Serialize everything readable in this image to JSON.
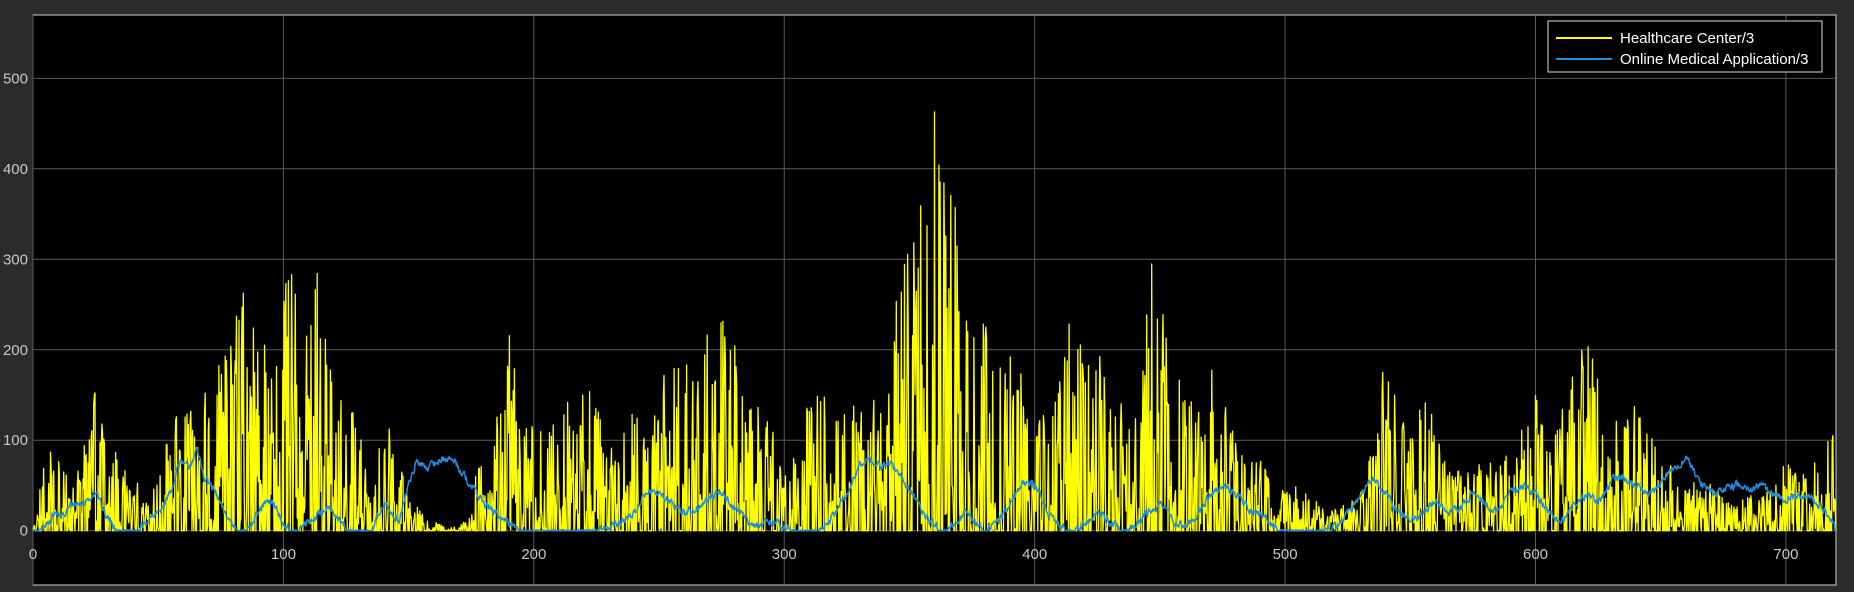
{
  "chart_data": {
    "type": "line",
    "xlim": [
      0,
      720
    ],
    "ylim": [
      -60,
      570
    ],
    "xticks": [
      0,
      100,
      200,
      300,
      400,
      500,
      600,
      700
    ],
    "yticks": [
      0,
      100,
      200,
      300,
      400,
      500
    ],
    "grid": true,
    "legend_position": "top-right",
    "background": "#000000",
    "frame_color": "#2b2b2b",
    "grid_color": "#5a5a5a",
    "series": [
      {
        "name": "Healthcare Center/3",
        "color": "#ffff00",
        "style": "spiky",
        "envelope": [
          [
            0,
            0
          ],
          [
            5,
            85
          ],
          [
            10,
            90
          ],
          [
            15,
            60
          ],
          [
            20,
            100
          ],
          [
            25,
            160
          ],
          [
            30,
            85
          ],
          [
            35,
            90
          ],
          [
            40,
            60
          ],
          [
            45,
            40
          ],
          [
            50,
            75
          ],
          [
            55,
            110
          ],
          [
            60,
            150
          ],
          [
            65,
            120
          ],
          [
            70,
            180
          ],
          [
            75,
            190
          ],
          [
            80,
            240
          ],
          [
            85,
            285
          ],
          [
            90,
            220
          ],
          [
            95,
            265
          ],
          [
            100,
            270
          ],
          [
            105,
            290
          ],
          [
            110,
            250
          ],
          [
            115,
            328
          ],
          [
            120,
            155
          ],
          [
            125,
            140
          ],
          [
            130,
            130
          ],
          [
            135,
            30
          ],
          [
            140,
            125
          ],
          [
            145,
            100
          ],
          [
            150,
            40
          ],
          [
            155,
            20
          ],
          [
            160,
            10
          ],
          [
            165,
            5
          ],
          [
            170,
            5
          ],
          [
            175,
            20
          ],
          [
            180,
            135
          ],
          [
            185,
            140
          ],
          [
            190,
            250
          ],
          [
            195,
            130
          ],
          [
            200,
            140
          ],
          [
            205,
            110
          ],
          [
            210,
            130
          ],
          [
            215,
            180
          ],
          [
            220,
            195
          ],
          [
            225,
            140
          ],
          [
            230,
            105
          ],
          [
            235,
            100
          ],
          [
            240,
            150
          ],
          [
            245,
            90
          ],
          [
            250,
            160
          ],
          [
            255,
            205
          ],
          [
            260,
            245
          ],
          [
            265,
            175
          ],
          [
            270,
            240
          ],
          [
            275,
            255
          ],
          [
            280,
            210
          ],
          [
            285,
            130
          ],
          [
            290,
            155
          ],
          [
            295,
            120
          ],
          [
            300,
            60
          ],
          [
            305,
            90
          ],
          [
            310,
            155
          ],
          [
            315,
            165
          ],
          [
            320,
            145
          ],
          [
            325,
            125
          ],
          [
            330,
            155
          ],
          [
            335,
            140
          ],
          [
            340,
            190
          ],
          [
            345,
            260
          ],
          [
            350,
            330
          ],
          [
            355,
            450
          ],
          [
            357,
            420
          ],
          [
            360,
            510
          ],
          [
            363,
            385
          ],
          [
            366,
            430
          ],
          [
            370,
            360
          ],
          [
            375,
            255
          ],
          [
            380,
            245
          ],
          [
            385,
            180
          ],
          [
            390,
            230
          ],
          [
            395,
            195
          ],
          [
            400,
            135
          ],
          [
            405,
            130
          ],
          [
            410,
            175
          ],
          [
            415,
            270
          ],
          [
            420,
            180
          ],
          [
            425,
            215
          ],
          [
            430,
            145
          ],
          [
            435,
            170
          ],
          [
            440,
            130
          ],
          [
            445,
            270
          ],
          [
            448,
            370
          ],
          [
            450,
            300
          ],
          [
            455,
            190
          ],
          [
            460,
            150
          ],
          [
            465,
            135
          ],
          [
            470,
            200
          ],
          [
            475,
            160
          ],
          [
            480,
            100
          ],
          [
            485,
            75
          ],
          [
            490,
            80
          ],
          [
            495,
            60
          ],
          [
            500,
            45
          ],
          [
            505,
            55
          ],
          [
            510,
            35
          ],
          [
            515,
            30
          ],
          [
            520,
            25
          ],
          [
            525,
            30
          ],
          [
            530,
            40
          ],
          [
            535,
            120
          ],
          [
            540,
            200
          ],
          [
            545,
            140
          ],
          [
            550,
            120
          ],
          [
            555,
            165
          ],
          [
            560,
            120
          ],
          [
            565,
            80
          ],
          [
            570,
            70
          ],
          [
            575,
            60
          ],
          [
            580,
            90
          ],
          [
            585,
            80
          ],
          [
            590,
            100
          ],
          [
            595,
            120
          ],
          [
            600,
            155
          ],
          [
            605,
            105
          ],
          [
            610,
            135
          ],
          [
            615,
            200
          ],
          [
            620,
            210
          ],
          [
            623,
            250
          ],
          [
            626,
            160
          ],
          [
            630,
            120
          ],
          [
            635,
            140
          ],
          [
            640,
            155
          ],
          [
            645,
            110
          ],
          [
            650,
            85
          ],
          [
            655,
            70
          ],
          [
            660,
            60
          ],
          [
            665,
            55
          ],
          [
            670,
            60
          ],
          [
            675,
            40
          ],
          [
            680,
            30
          ],
          [
            685,
            40
          ],
          [
            690,
            45
          ],
          [
            695,
            50
          ],
          [
            700,
            80
          ],
          [
            705,
            60
          ],
          [
            710,
            80
          ],
          [
            715,
            95
          ],
          [
            720,
            112
          ]
        ]
      },
      {
        "name": "Online Medical Application/3",
        "color": "#1e8fe0",
        "style": "smooth",
        "envelope": [
          [
            0,
            0
          ],
          [
            5,
            5
          ],
          [
            8,
            20
          ],
          [
            12,
            15
          ],
          [
            15,
            30
          ],
          [
            20,
            30
          ],
          [
            25,
            45
          ],
          [
            28,
            20
          ],
          [
            32,
            5
          ],
          [
            36,
            0
          ],
          [
            42,
            0
          ],
          [
            45,
            10
          ],
          [
            50,
            20
          ],
          [
            55,
            45
          ],
          [
            58,
            75
          ],
          [
            62,
            70
          ],
          [
            65,
            90
          ],
          [
            68,
            60
          ],
          [
            72,
            45
          ],
          [
            76,
            20
          ],
          [
            80,
            5
          ],
          [
            84,
            0
          ],
          [
            88,
            10
          ],
          [
            92,
            30
          ],
          [
            96,
            30
          ],
          [
            100,
            5
          ],
          [
            105,
            0
          ],
          [
            110,
            10
          ],
          [
            115,
            20
          ],
          [
            118,
            30
          ],
          [
            122,
            10
          ],
          [
            126,
            0
          ],
          [
            135,
            0
          ],
          [
            140,
            30
          ],
          [
            143,
            20
          ],
          [
            146,
            10
          ],
          [
            150,
            55
          ],
          [
            153,
            75
          ],
          [
            158,
            70
          ],
          [
            163,
            80
          ],
          [
            168,
            78
          ],
          [
            172,
            60
          ],
          [
            176,
            45
          ],
          [
            180,
            30
          ],
          [
            184,
            20
          ],
          [
            188,
            10
          ],
          [
            192,
            5
          ],
          [
            196,
            2
          ],
          [
            200,
            0
          ],
          [
            210,
            0
          ],
          [
            220,
            0
          ],
          [
            230,
            5
          ],
          [
            235,
            10
          ],
          [
            240,
            20
          ],
          [
            245,
            45
          ],
          [
            250,
            40
          ],
          [
            255,
            30
          ],
          [
            260,
            20
          ],
          [
            265,
            25
          ],
          [
            270,
            35
          ],
          [
            274,
            45
          ],
          [
            278,
            30
          ],
          [
            282,
            20
          ],
          [
            286,
            10
          ],
          [
            290,
            5
          ],
          [
            295,
            10
          ],
          [
            300,
            5
          ],
          [
            305,
            0
          ],
          [
            312,
            0
          ],
          [
            318,
            10
          ],
          [
            322,
            30
          ],
          [
            326,
            45
          ],
          [
            330,
            75
          ],
          [
            334,
            80
          ],
          [
            338,
            70
          ],
          [
            342,
            75
          ],
          [
            346,
            60
          ],
          [
            350,
            45
          ],
          [
            354,
            25
          ],
          [
            358,
            10
          ],
          [
            362,
            0
          ],
          [
            368,
            5
          ],
          [
            372,
            20
          ],
          [
            376,
            10
          ],
          [
            380,
            0
          ],
          [
            385,
            10
          ],
          [
            390,
            30
          ],
          [
            395,
            55
          ],
          [
            400,
            50
          ],
          [
            405,
            20
          ],
          [
            410,
            5
          ],
          [
            415,
            0
          ],
          [
            420,
            10
          ],
          [
            425,
            20
          ],
          [
            430,
            10
          ],
          [
            435,
            0
          ],
          [
            440,
            5
          ],
          [
            445,
            20
          ],
          [
            450,
            30
          ],
          [
            455,
            10
          ],
          [
            460,
            5
          ],
          [
            465,
            20
          ],
          [
            470,
            40
          ],
          [
            475,
            50
          ],
          [
            480,
            40
          ],
          [
            485,
            25
          ],
          [
            490,
            15
          ],
          [
            495,
            5
          ],
          [
            500,
            0
          ],
          [
            510,
            0
          ],
          [
            520,
            5
          ],
          [
            525,
            20
          ],
          [
            530,
            40
          ],
          [
            535,
            60
          ],
          [
            540,
            40
          ],
          [
            545,
            20
          ],
          [
            550,
            10
          ],
          [
            555,
            20
          ],
          [
            560,
            35
          ],
          [
            565,
            20
          ],
          [
            570,
            25
          ],
          [
            575,
            45
          ],
          [
            580,
            30
          ],
          [
            585,
            20
          ],
          [
            590,
            45
          ],
          [
            595,
            50
          ],
          [
            600,
            40
          ],
          [
            605,
            20
          ],
          [
            610,
            10
          ],
          [
            615,
            30
          ],
          [
            620,
            40
          ],
          [
            625,
            30
          ],
          [
            630,
            55
          ],
          [
            635,
            60
          ],
          [
            640,
            50
          ],
          [
            645,
            40
          ],
          [
            650,
            55
          ],
          [
            655,
            70
          ],
          [
            660,
            80
          ],
          [
            665,
            55
          ],
          [
            670,
            40
          ],
          [
            675,
            45
          ],
          [
            680,
            50
          ],
          [
            685,
            45
          ],
          [
            690,
            50
          ],
          [
            695,
            40
          ],
          [
            700,
            35
          ],
          [
            705,
            40
          ],
          [
            710,
            35
          ],
          [
            715,
            25
          ],
          [
            720,
            0
          ]
        ]
      }
    ]
  }
}
